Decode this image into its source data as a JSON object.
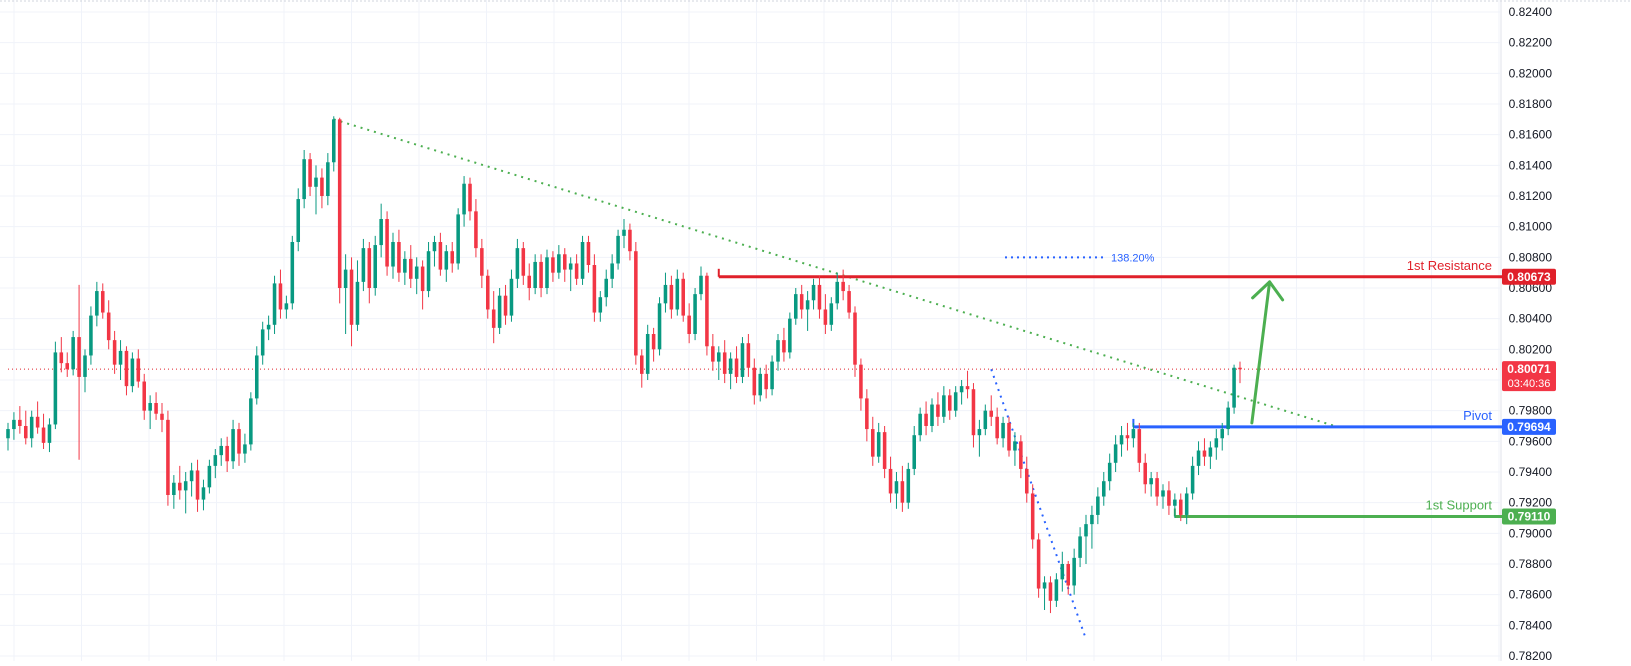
{
  "chart_data": {
    "type": "candlestick",
    "grid": true,
    "ylim": [
      0.782,
      0.824
    ],
    "price_axis_labels": [
      "0.82400",
      "0.82200",
      "0.82000",
      "0.81800",
      "0.81600",
      "0.81400",
      "0.81200",
      "0.81000",
      "0.80800",
      "0.80600",
      "0.80400",
      "0.80200",
      "0.80000",
      "0.79800",
      "0.79600",
      "0.79400",
      "0.79200",
      "0.79000",
      "0.78800",
      "0.78600",
      "0.78400",
      "0.78200"
    ],
    "current_price": {
      "value": 0.80071,
      "label": "0.80071",
      "countdown": "03:40:36"
    },
    "levels": [
      {
        "name": "1st Resistance",
        "value": 0.80673,
        "label": "0.80673",
        "x_start_bar": 120,
        "color": "#e0202a"
      },
      {
        "name": "Pivot",
        "value": 0.79694,
        "label": "0.79694",
        "x_start_bar": 190,
        "color": "#2962ff"
      },
      {
        "name": "1st Support",
        "value": 0.7911,
        "label": "0.79110",
        "x_start_bar": 197,
        "color": "#4caf50"
      }
    ],
    "fib_annotation": {
      "label": "138.20%",
      "value": 0.808
    },
    "trendline": {
      "from": {
        "bar": 55,
        "value": 0.817
      },
      "to": {
        "bar": 224,
        "value": 0.797
      }
    },
    "fib_line": {
      "from": {
        "bar": 166,
        "value": 0.8007
      },
      "to": {
        "bar": 182,
        "value": 0.7831
      }
    },
    "projection_arrow": {
      "from": {
        "bar": 210,
        "value": 0.7972
      },
      "to": {
        "bar": 213,
        "value": 0.8064
      }
    },
    "candles_ohlc": [
      [
        0.7962,
        0.7972,
        0.7954,
        0.7968
      ],
      [
        0.7968,
        0.7979,
        0.7961,
        0.7974
      ],
      [
        0.7974,
        0.7983,
        0.7965,
        0.797
      ],
      [
        0.797,
        0.798,
        0.7958,
        0.7962
      ],
      [
        0.7962,
        0.798,
        0.7956,
        0.7976
      ],
      [
        0.7976,
        0.7986,
        0.7965,
        0.7969
      ],
      [
        0.7969,
        0.7978,
        0.7955,
        0.7959
      ],
      [
        0.7959,
        0.7975,
        0.7953,
        0.7971
      ],
      [
        0.7971,
        0.8025,
        0.7968,
        0.8018
      ],
      [
        0.8018,
        0.8028,
        0.8005,
        0.8011
      ],
      [
        0.8011,
        0.8018,
        0.8002,
        0.8007
      ],
      [
        0.8007,
        0.8032,
        0.8003,
        0.8028
      ],
      [
        0.8028,
        0.8062,
        0.7948,
        0.8002
      ],
      [
        0.8002,
        0.802,
        0.7992,
        0.8016
      ],
      [
        0.8016,
        0.8048,
        0.801,
        0.8042
      ],
      [
        0.8042,
        0.8064,
        0.8035,
        0.8058
      ],
      [
        0.8058,
        0.8063,
        0.804,
        0.8044
      ],
      [
        0.8044,
        0.8052,
        0.802,
        0.8026
      ],
      [
        0.8026,
        0.8032,
        0.8004,
        0.801
      ],
      [
        0.801,
        0.8026,
        0.8,
        0.8019
      ],
      [
        0.8019,
        0.8022,
        0.799,
        0.7996
      ],
      [
        0.7996,
        0.8018,
        0.7992,
        0.8014
      ],
      [
        0.8014,
        0.802,
        0.7995,
        0.7999
      ],
      [
        0.7999,
        0.8004,
        0.7974,
        0.798
      ],
      [
        0.798,
        0.799,
        0.7968,
        0.7985
      ],
      [
        0.7985,
        0.7992,
        0.7974,
        0.7978
      ],
      [
        0.7978,
        0.7985,
        0.7966,
        0.7974
      ],
      [
        0.7974,
        0.798,
        0.7918,
        0.7925
      ],
      [
        0.7925,
        0.7938,
        0.7916,
        0.7933
      ],
      [
        0.7933,
        0.7944,
        0.7922,
        0.7928
      ],
      [
        0.7928,
        0.794,
        0.7913,
        0.7934
      ],
      [
        0.7934,
        0.7946,
        0.7924,
        0.7941
      ],
      [
        0.7941,
        0.7948,
        0.7914,
        0.7922
      ],
      [
        0.7922,
        0.7935,
        0.7915,
        0.793
      ],
      [
        0.793,
        0.7948,
        0.7926,
        0.7944
      ],
      [
        0.7944,
        0.7955,
        0.7936,
        0.7951
      ],
      [
        0.7951,
        0.7962,
        0.7944,
        0.7957
      ],
      [
        0.7957,
        0.7963,
        0.794,
        0.7947
      ],
      [
        0.7947,
        0.7974,
        0.7942,
        0.7968
      ],
      [
        0.7968,
        0.7972,
        0.7944,
        0.7952
      ],
      [
        0.7952,
        0.7965,
        0.7946,
        0.7958
      ],
      [
        0.7958,
        0.7992,
        0.7954,
        0.7988
      ],
      [
        0.7988,
        0.8022,
        0.7984,
        0.8016
      ],
      [
        0.8016,
        0.8038,
        0.801,
        0.8033
      ],
      [
        0.8033,
        0.8042,
        0.8026,
        0.8036
      ],
      [
        0.8036,
        0.8068,
        0.803,
        0.8063
      ],
      [
        0.8063,
        0.8072,
        0.804,
        0.8046
      ],
      [
        0.8046,
        0.8055,
        0.804,
        0.805
      ],
      [
        0.805,
        0.8094,
        0.8046,
        0.809
      ],
      [
        0.809,
        0.8125,
        0.8084,
        0.8118
      ],
      [
        0.8118,
        0.815,
        0.8112,
        0.8144
      ],
      [
        0.8144,
        0.8148,
        0.812,
        0.8126
      ],
      [
        0.8126,
        0.814,
        0.8108,
        0.8132
      ],
      [
        0.8132,
        0.8138,
        0.8112,
        0.812
      ],
      [
        0.812,
        0.8148,
        0.8114,
        0.8142
      ],
      [
        0.8142,
        0.8172,
        0.8136,
        0.817
      ],
      [
        0.817,
        0.8171,
        0.805,
        0.806
      ],
      [
        0.806,
        0.8082,
        0.803,
        0.8072
      ],
      [
        0.8072,
        0.808,
        0.8022,
        0.8036
      ],
      [
        0.8036,
        0.8078,
        0.8032,
        0.8064
      ],
      [
        0.8064,
        0.8092,
        0.8058,
        0.8086
      ],
      [
        0.8086,
        0.809,
        0.805,
        0.806
      ],
      [
        0.806,
        0.8094,
        0.8055,
        0.8088
      ],
      [
        0.8088,
        0.8115,
        0.808,
        0.8105
      ],
      [
        0.8105,
        0.811,
        0.8068,
        0.8074
      ],
      [
        0.8074,
        0.8096,
        0.8066,
        0.809
      ],
      [
        0.809,
        0.8098,
        0.8064,
        0.807
      ],
      [
        0.807,
        0.8084,
        0.8062,
        0.8079
      ],
      [
        0.8079,
        0.8088,
        0.806,
        0.8066
      ],
      [
        0.8066,
        0.808,
        0.8056,
        0.8074
      ],
      [
        0.8074,
        0.8078,
        0.8046,
        0.8058
      ],
      [
        0.8058,
        0.809,
        0.8054,
        0.8084
      ],
      [
        0.8084,
        0.8094,
        0.8074,
        0.809
      ],
      [
        0.809,
        0.8096,
        0.8068,
        0.8072
      ],
      [
        0.8072,
        0.8088,
        0.8064,
        0.8084
      ],
      [
        0.8084,
        0.809,
        0.807,
        0.8076
      ],
      [
        0.8076,
        0.8112,
        0.8072,
        0.8108
      ],
      [
        0.8108,
        0.8133,
        0.81,
        0.8128
      ],
      [
        0.8128,
        0.8132,
        0.8104,
        0.811
      ],
      [
        0.811,
        0.8118,
        0.808,
        0.8086
      ],
      [
        0.8086,
        0.8092,
        0.806,
        0.8068
      ],
      [
        0.8068,
        0.8072,
        0.804,
        0.8046
      ],
      [
        0.8046,
        0.8058,
        0.8024,
        0.8034
      ],
      [
        0.8034,
        0.806,
        0.803,
        0.8055
      ],
      [
        0.8055,
        0.8062,
        0.8036,
        0.8042
      ],
      [
        0.8042,
        0.8072,
        0.8038,
        0.8066
      ],
      [
        0.8066,
        0.8092,
        0.806,
        0.8086
      ],
      [
        0.8086,
        0.809,
        0.8062,
        0.8068
      ],
      [
        0.8068,
        0.8076,
        0.8052,
        0.806
      ],
      [
        0.806,
        0.8082,
        0.8056,
        0.8077
      ],
      [
        0.8077,
        0.8082,
        0.8054,
        0.806
      ],
      [
        0.806,
        0.8085,
        0.8056,
        0.808
      ],
      [
        0.808,
        0.8084,
        0.8064,
        0.807
      ],
      [
        0.807,
        0.8088,
        0.8066,
        0.8082
      ],
      [
        0.8082,
        0.8086,
        0.8064,
        0.8072
      ],
      [
        0.8072,
        0.808,
        0.8058,
        0.8076
      ],
      [
        0.8076,
        0.8082,
        0.8062,
        0.8066
      ],
      [
        0.8066,
        0.8094,
        0.8062,
        0.809
      ],
      [
        0.809,
        0.8094,
        0.807,
        0.8075
      ],
      [
        0.8075,
        0.8082,
        0.8038,
        0.8044
      ],
      [
        0.8044,
        0.8058,
        0.8038,
        0.8054
      ],
      [
        0.8054,
        0.8072,
        0.8048,
        0.8066
      ],
      [
        0.8066,
        0.8082,
        0.806,
        0.8076
      ],
      [
        0.8076,
        0.8098,
        0.8072,
        0.8094
      ],
      [
        0.8094,
        0.8105,
        0.8086,
        0.8098
      ],
      [
        0.8098,
        0.8102,
        0.8078,
        0.8084
      ],
      [
        0.8084,
        0.809,
        0.801,
        0.8016
      ],
      [
        0.8016,
        0.802,
        0.7995,
        0.8004
      ],
      [
        0.8004,
        0.8036,
        0.8,
        0.803
      ],
      [
        0.803,
        0.8034,
        0.8012,
        0.802
      ],
      [
        0.802,
        0.8054,
        0.8016,
        0.805
      ],
      [
        0.805,
        0.807,
        0.8044,
        0.8062
      ],
      [
        0.8062,
        0.8068,
        0.804,
        0.8046
      ],
      [
        0.8046,
        0.8072,
        0.8042,
        0.8066
      ],
      [
        0.8066,
        0.807,
        0.8038,
        0.8042
      ],
      [
        0.8042,
        0.805,
        0.8024,
        0.803
      ],
      [
        0.803,
        0.806,
        0.8026,
        0.8056
      ],
      [
        0.8056,
        0.8074,
        0.8052,
        0.8068
      ],
      [
        0.8068,
        0.807,
        0.8016,
        0.8022
      ],
      [
        0.8022,
        0.803,
        0.8006,
        0.8012
      ],
      [
        0.8012,
        0.8022,
        0.8,
        0.8018
      ],
      [
        0.8018,
        0.8026,
        0.7998,
        0.8004
      ],
      [
        0.8004,
        0.8018,
        0.7994,
        0.8014
      ],
      [
        0.8014,
        0.8022,
        0.7998,
        0.8002
      ],
      [
        0.8002,
        0.8028,
        0.7998,
        0.8024
      ],
      [
        0.8024,
        0.803,
        0.8002,
        0.8008
      ],
      [
        0.8008,
        0.8014,
        0.7984,
        0.799
      ],
      [
        0.799,
        0.8008,
        0.7986,
        0.8004
      ],
      [
        0.8004,
        0.801,
        0.7988,
        0.7994
      ],
      [
        0.7994,
        0.8016,
        0.799,
        0.8012
      ],
      [
        0.8012,
        0.803,
        0.8006,
        0.8026
      ],
      [
        0.8026,
        0.8034,
        0.8012,
        0.8018
      ],
      [
        0.8018,
        0.8044,
        0.8014,
        0.804
      ],
      [
        0.804,
        0.806,
        0.8036,
        0.8056
      ],
      [
        0.8056,
        0.8062,
        0.804,
        0.8046
      ],
      [
        0.8046,
        0.8058,
        0.8032,
        0.8052
      ],
      [
        0.8052,
        0.8066,
        0.8046,
        0.8062
      ],
      [
        0.8062,
        0.8068,
        0.804,
        0.8046
      ],
      [
        0.8046,
        0.8056,
        0.803,
        0.8036
      ],
      [
        0.8036,
        0.8054,
        0.8032,
        0.805
      ],
      [
        0.805,
        0.807,
        0.8046,
        0.8064
      ],
      [
        0.8064,
        0.8072,
        0.8052,
        0.8058
      ],
      [
        0.8058,
        0.8062,
        0.804,
        0.8044
      ],
      [
        0.8044,
        0.8048,
        0.8002,
        0.801
      ],
      [
        0.801,
        0.8014,
        0.798,
        0.7988
      ],
      [
        0.7988,
        0.7994,
        0.796,
        0.7968
      ],
      [
        0.7968,
        0.7976,
        0.7944,
        0.795
      ],
      [
        0.795,
        0.7972,
        0.7946,
        0.7966
      ],
      [
        0.7966,
        0.797,
        0.7936,
        0.7942
      ],
      [
        0.7942,
        0.795,
        0.792,
        0.7926
      ],
      [
        0.7926,
        0.794,
        0.7916,
        0.7934
      ],
      [
        0.7934,
        0.7944,
        0.7914,
        0.792
      ],
      [
        0.792,
        0.7946,
        0.7916,
        0.7942
      ],
      [
        0.7942,
        0.797,
        0.7938,
        0.7964
      ],
      [
        0.7964,
        0.7982,
        0.796,
        0.7978
      ],
      [
        0.7978,
        0.7986,
        0.7964,
        0.797
      ],
      [
        0.797,
        0.7988,
        0.7966,
        0.7984
      ],
      [
        0.7984,
        0.7992,
        0.797,
        0.7976
      ],
      [
        0.7976,
        0.7996,
        0.7972,
        0.799
      ],
      [
        0.799,
        0.7994,
        0.7974,
        0.798
      ],
      [
        0.798,
        0.7996,
        0.7976,
        0.7992
      ],
      [
        0.7992,
        0.8,
        0.7984,
        0.7996
      ],
      [
        0.7996,
        0.8006,
        0.7988,
        0.7994
      ],
      [
        0.7994,
        0.7998,
        0.7956,
        0.7964
      ],
      [
        0.7964,
        0.7974,
        0.795,
        0.7968
      ],
      [
        0.7968,
        0.7984,
        0.7964,
        0.798
      ],
      [
        0.798,
        0.799,
        0.797,
        0.7976
      ],
      [
        0.7976,
        0.7982,
        0.7958,
        0.7962
      ],
      [
        0.7962,
        0.7976,
        0.7956,
        0.7972
      ],
      [
        0.7972,
        0.7976,
        0.795,
        0.7954
      ],
      [
        0.7954,
        0.7966,
        0.7944,
        0.796
      ],
      [
        0.796,
        0.7964,
        0.7936,
        0.7942
      ],
      [
        0.7942,
        0.795,
        0.792,
        0.7926
      ],
      [
        0.7926,
        0.7932,
        0.789,
        0.7896
      ],
      [
        0.7896,
        0.79,
        0.7858,
        0.7864
      ],
      [
        0.7864,
        0.7872,
        0.785,
        0.7868
      ],
      [
        0.7868,
        0.7872,
        0.7848,
        0.7856
      ],
      [
        0.7856,
        0.7874,
        0.7852,
        0.787
      ],
      [
        0.787,
        0.7888,
        0.7862,
        0.788
      ],
      [
        0.788,
        0.7882,
        0.786,
        0.7866
      ],
      [
        0.7866,
        0.789,
        0.786,
        0.7884
      ],
      [
        0.7884,
        0.7904,
        0.7878,
        0.7898
      ],
      [
        0.7898,
        0.7912,
        0.788,
        0.7906
      ],
      [
        0.7906,
        0.7918,
        0.789,
        0.7912
      ],
      [
        0.7912,
        0.793,
        0.7906,
        0.7924
      ],
      [
        0.7924,
        0.794,
        0.7918,
        0.7934
      ],
      [
        0.7934,
        0.7952,
        0.7928,
        0.7946
      ],
      [
        0.7946,
        0.7964,
        0.794,
        0.7958
      ],
      [
        0.7958,
        0.797,
        0.795,
        0.7964
      ],
      [
        0.7964,
        0.7972,
        0.7954,
        0.7962
      ],
      [
        0.7962,
        0.7972,
        0.7956,
        0.7968
      ],
      [
        0.7968,
        0.7972,
        0.794,
        0.7946
      ],
      [
        0.7946,
        0.7952,
        0.7926,
        0.7932
      ],
      [
        0.7932,
        0.794,
        0.7924,
        0.7936
      ],
      [
        0.7936,
        0.794,
        0.7918,
        0.7924
      ],
      [
        0.7924,
        0.7932,
        0.7916,
        0.7928
      ],
      [
        0.7928,
        0.7934,
        0.7912,
        0.7918
      ],
      [
        0.7918,
        0.7926,
        0.791,
        0.7922
      ],
      [
        0.7922,
        0.7926,
        0.7908,
        0.7912
      ],
      [
        0.7912,
        0.793,
        0.7906,
        0.7926
      ],
      [
        0.7926,
        0.795,
        0.7922,
        0.7944
      ],
      [
        0.7944,
        0.796,
        0.7938,
        0.7954
      ],
      [
        0.7954,
        0.7962,
        0.7944,
        0.795
      ],
      [
        0.795,
        0.796,
        0.7942,
        0.7956
      ],
      [
        0.7956,
        0.7968,
        0.7948,
        0.7962
      ],
      [
        0.7962,
        0.7972,
        0.7954,
        0.7968
      ],
      [
        0.7968,
        0.7986,
        0.7964,
        0.7982
      ],
      [
        0.7982,
        0.801,
        0.7978,
        0.8008
      ],
      [
        0.8008,
        0.8012,
        0.7998,
        0.8007
      ]
    ]
  }
}
